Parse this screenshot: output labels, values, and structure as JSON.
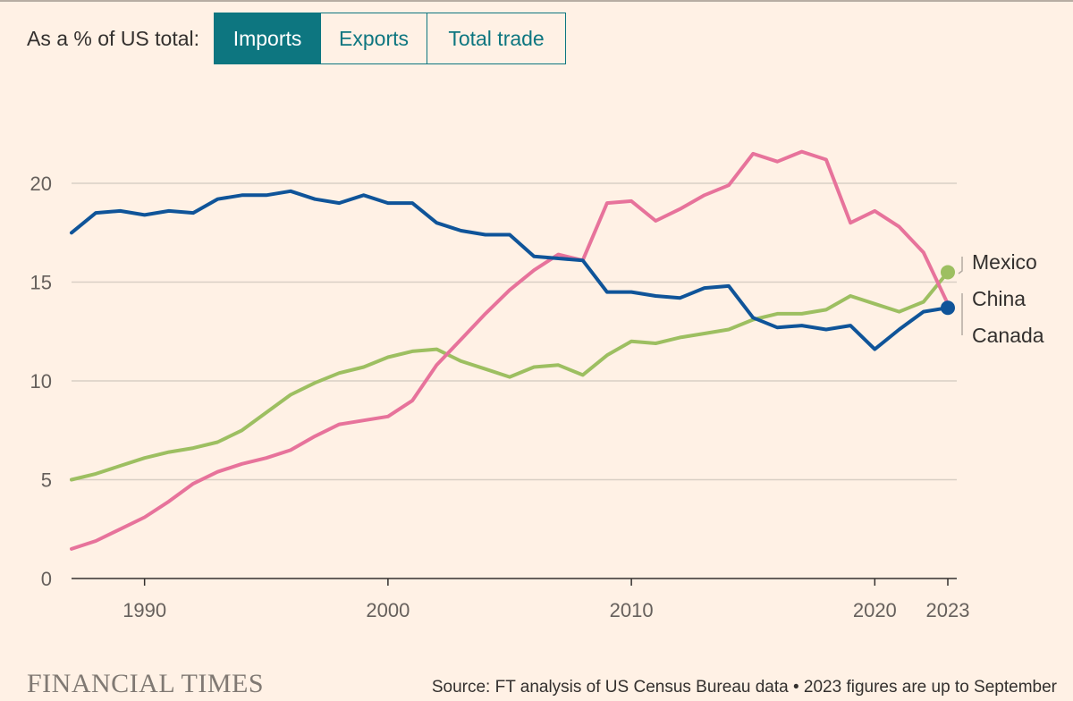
{
  "controls": {
    "label": "As a % of US total:",
    "tabs": [
      {
        "label": "Imports",
        "active": true
      },
      {
        "label": "Exports",
        "active": false
      },
      {
        "label": "Total trade",
        "active": false
      }
    ]
  },
  "colors": {
    "background": "#fff1e5",
    "accent": "#0d7680",
    "mexico": "#9dbf61",
    "china": "#e7739b",
    "canada": "#0f5499",
    "grid": "#d9cfc5"
  },
  "chart_data": {
    "type": "line",
    "title": "",
    "xlabel": "",
    "ylabel": "",
    "ylim": [
      0,
      20
    ],
    "xlim": [
      1987,
      2023
    ],
    "y_ticks": [
      "0",
      "5",
      "10",
      "15",
      "20"
    ],
    "x_ticks": [
      "1990",
      "2000",
      "2010",
      "2020",
      "2023"
    ],
    "grid": true,
    "legend": "inline labels at right end",
    "x": [
      1987,
      1988,
      1989,
      1990,
      1991,
      1992,
      1993,
      1994,
      1995,
      1996,
      1997,
      1998,
      1999,
      2000,
      2001,
      2002,
      2003,
      2004,
      2005,
      2006,
      2007,
      2008,
      2009,
      2010,
      2011,
      2012,
      2013,
      2014,
      2015,
      2016,
      2017,
      2018,
      2019,
      2020,
      2021,
      2022,
      2023
    ],
    "series": [
      {
        "name": "Mexico",
        "color": "#9dbf61",
        "values": [
          5.0,
          5.3,
          5.7,
          6.1,
          6.4,
          6.6,
          6.9,
          7.5,
          8.4,
          9.3,
          9.9,
          10.4,
          10.7,
          11.2,
          11.5,
          11.6,
          11.0,
          10.6,
          10.2,
          10.7,
          10.8,
          10.3,
          11.3,
          12.0,
          11.9,
          12.2,
          12.4,
          12.6,
          13.1,
          13.4,
          13.4,
          13.6,
          14.3,
          13.9,
          13.5,
          14.0,
          15.5
        ]
      },
      {
        "name": "China",
        "color": "#e7739b",
        "values": [
          1.5,
          1.9,
          2.5,
          3.1,
          3.9,
          4.8,
          5.4,
          5.8,
          6.1,
          6.5,
          7.2,
          7.8,
          8.0,
          8.2,
          9.0,
          10.8,
          12.1,
          13.4,
          14.6,
          15.6,
          16.4,
          16.1,
          19.0,
          19.1,
          18.1,
          18.7,
          19.4,
          19.9,
          21.5,
          21.1,
          21.6,
          21.2,
          18.0,
          18.6,
          17.8,
          16.5,
          13.9
        ]
      },
      {
        "name": "Canada",
        "color": "#0f5499",
        "values": [
          17.5,
          18.5,
          18.6,
          18.4,
          18.6,
          18.5,
          19.2,
          19.4,
          19.4,
          19.6,
          19.2,
          19.0,
          19.4,
          19.0,
          19.0,
          18.0,
          17.6,
          17.4,
          17.4,
          16.3,
          16.2,
          16.1,
          14.5,
          14.5,
          14.3,
          14.2,
          14.7,
          14.8,
          13.2,
          12.7,
          12.8,
          12.6,
          12.8,
          11.6,
          12.6,
          13.5,
          13.7
        ]
      }
    ],
    "end_labels": [
      "Mexico",
      "China",
      "Canada"
    ],
    "end_markers": [
      "Mexico",
      "Canada"
    ]
  },
  "footer": {
    "logo": "FINANCIAL TIMES",
    "source": "Source: FT analysis of US Census Bureau data • 2023 figures are up to September"
  }
}
